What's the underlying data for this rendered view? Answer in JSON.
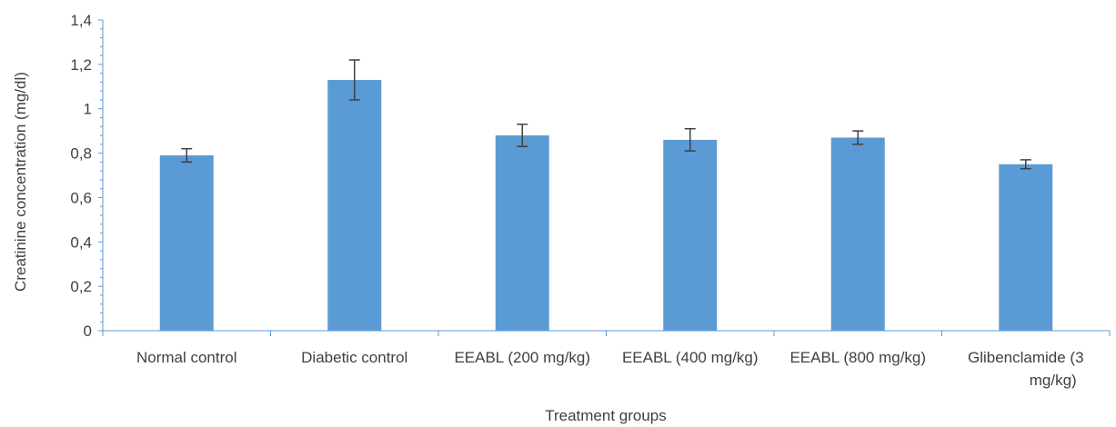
{
  "chart_data": {
    "type": "bar",
    "title": "",
    "xlabel": "Treatment groups",
    "ylabel": "Creatinine concentration (mg/dl)",
    "ylim": [
      0,
      1.4
    ],
    "yticks": [
      "0",
      "0,2",
      "0,4",
      "0,6",
      "0,8",
      "1",
      "1,2",
      "1,4"
    ],
    "categories": [
      [
        "Normal control"
      ],
      [
        "Diabetic control"
      ],
      [
        "EEABL (200 mg/kg)"
      ],
      [
        "EEABL (400 mg/kg)"
      ],
      [
        "EEABL (800 mg/kg)"
      ],
      [
        "Glibenclamide (3",
        "mg/kg)"
      ]
    ],
    "values": [
      0.79,
      1.13,
      0.88,
      0.86,
      0.87,
      0.75
    ],
    "errors": [
      0.03,
      0.09,
      0.05,
      0.05,
      0.03,
      0.02
    ],
    "grid": false,
    "legend": "none",
    "colors": {
      "bar": "#5B9BD5",
      "error_bar": "#404040",
      "axis": "#5B9BD5",
      "text": "#404040"
    }
  }
}
